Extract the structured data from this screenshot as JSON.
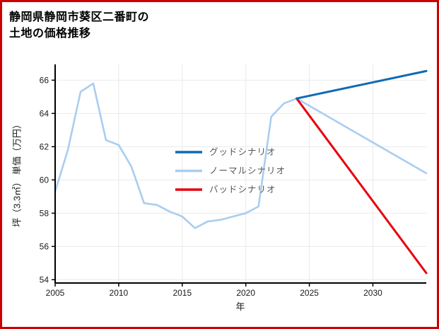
{
  "title": {
    "line1": "静岡県静岡市葵区二番町の",
    "line2": "土地の価格推移"
  },
  "colors": {
    "frame": "#cc0000",
    "background": "#ffffff",
    "axis": "#000000",
    "grid": "#e9e9e9",
    "tick_label": "#1a1a1a",
    "legend_text": "#555555"
  },
  "chart_data": {
    "type": "line",
    "title": "静岡県静岡市葵区二番町の土地の価格推移",
    "xlabel": "年",
    "ylabel": "坪（3.3㎡） 単価（万円）",
    "xlim": [
      2005,
      2034.2
    ],
    "ylim": [
      53.8,
      66.95
    ],
    "xticks": [
      2005,
      2010,
      2015,
      2020,
      2025,
      2030
    ],
    "yticks": [
      54,
      56,
      58,
      60,
      62,
      64,
      66
    ],
    "grid": true,
    "legend_position": "center-inside",
    "series": [
      {
        "name": "グッドシナリオ",
        "color": "#0f6ab4",
        "width": 3,
        "z": 3,
        "x": [
          2024,
          2034.2
        ],
        "y": [
          64.9,
          66.55
        ]
      },
      {
        "name": "ノーマルシナリオ",
        "color": "#a9cdf0",
        "width": 2.6,
        "z": 1,
        "x": [
          2005,
          2006,
          2007,
          2008,
          2009,
          2010,
          2011,
          2012,
          2013,
          2014,
          2015,
          2016,
          2017,
          2018,
          2019,
          2020,
          2021,
          2022,
          2023,
          2024,
          2034.2
        ],
        "y": [
          59.3,
          61.8,
          65.3,
          65.8,
          62.4,
          62.1,
          60.8,
          58.6,
          58.5,
          58.1,
          57.8,
          57.1,
          57.5,
          57.6,
          57.8,
          58.0,
          58.4,
          63.8,
          64.6,
          64.9,
          60.4
        ]
      },
      {
        "name": "バッドシナリオ",
        "color": "#e8000b",
        "width": 3,
        "z": 2,
        "x": [
          2024,
          2034.2
        ],
        "y": [
          64.9,
          54.4
        ]
      }
    ]
  }
}
